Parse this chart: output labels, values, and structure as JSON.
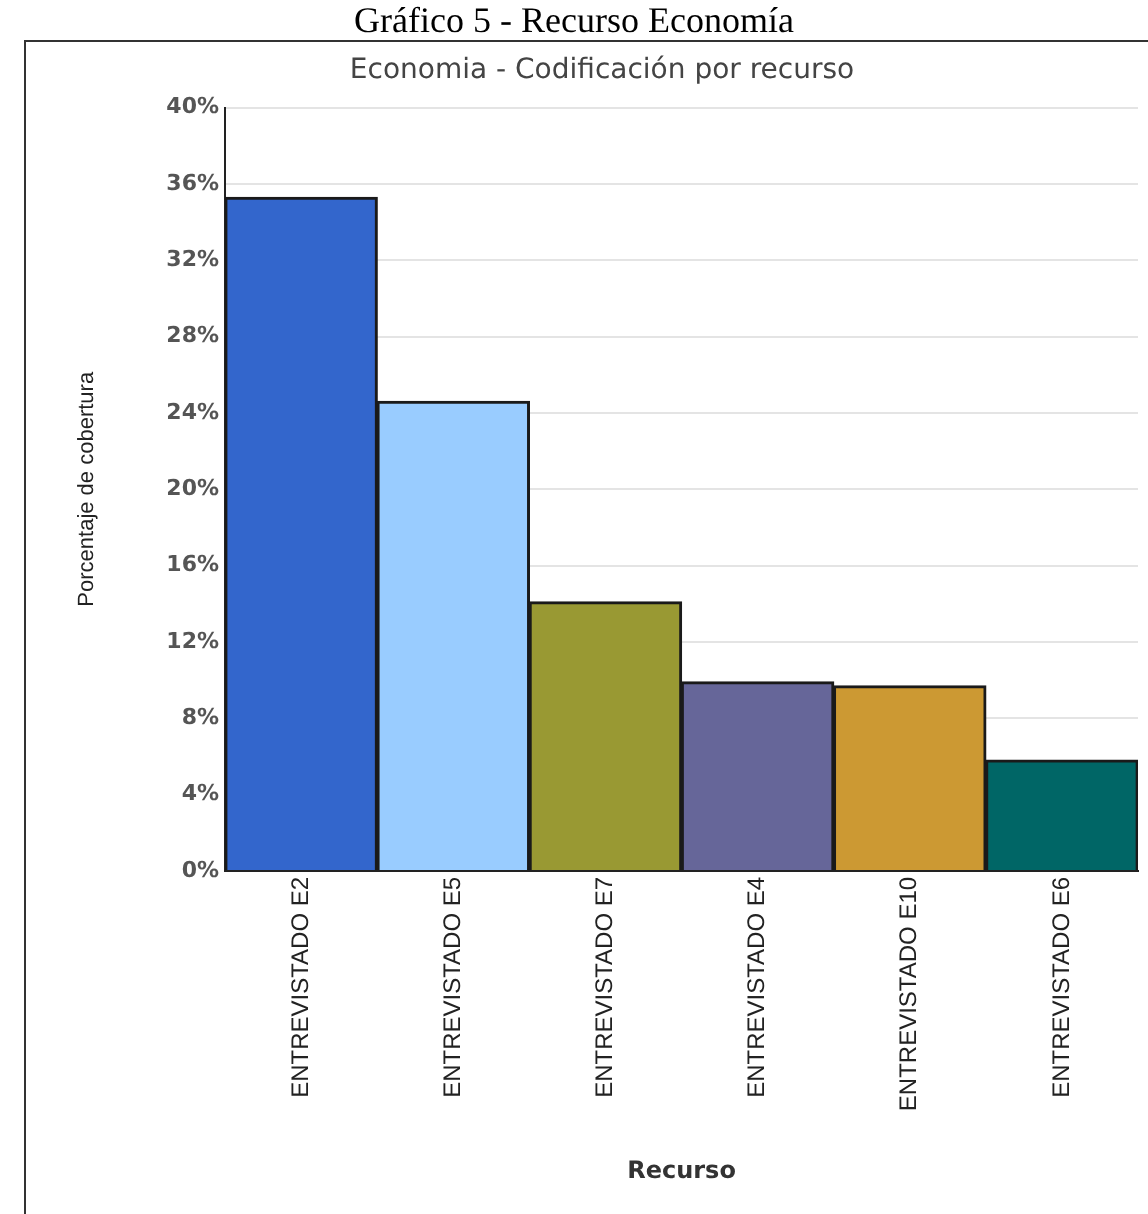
{
  "chart_data": {
    "type": "bar",
    "title": "Economia - Codificación por recurso",
    "xlabel": "Recurso",
    "ylabel": "Porcentaje de cobertura",
    "annotations": [
      "Gráfico 5 - Recurso Economía"
    ],
    "categories": [
      "ENTREVISTADO E2",
      "ENTREVISTADO E5",
      "ENTREVISTADO E7",
      "ENTREVISTADO E4",
      "ENTREVISTADO E10",
      "ENTREVISTADO E6"
    ],
    "values": [
      35.3,
      24.6,
      14.1,
      9.9,
      9.7,
      5.8
    ],
    "colors": [
      "#3366cc",
      "#99ccff",
      "#999933",
      "#666699",
      "#cc9933",
      "#006666"
    ],
    "ylim": [
      0,
      40
    ],
    "yticks": [
      {
        "value": 0,
        "label": "0%"
      },
      {
        "value": 4,
        "label": "4%"
      },
      {
        "value": 8,
        "label": "8%"
      },
      {
        "value": 12,
        "label": "12%"
      },
      {
        "value": 16,
        "label": "16%"
      },
      {
        "value": 20,
        "label": "20%"
      },
      {
        "value": 24,
        "label": "24%"
      },
      {
        "value": 28,
        "label": "28%"
      },
      {
        "value": 32,
        "label": "32%"
      },
      {
        "value": 36,
        "label": "36%"
      },
      {
        "value": 40,
        "label": "40%"
      }
    ],
    "grid": "y",
    "legend": false
  }
}
